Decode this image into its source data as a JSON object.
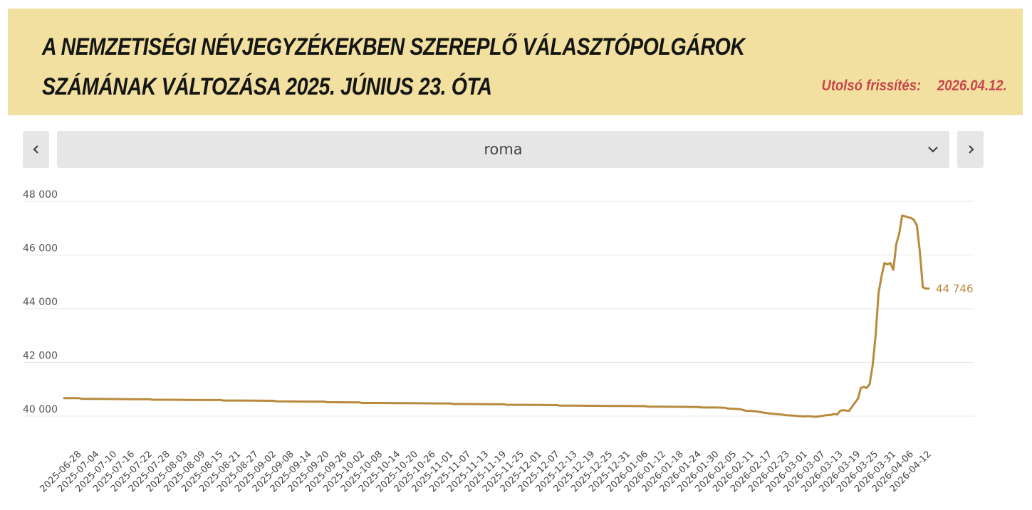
{
  "header": {
    "title_line1": "A NEMZETISÉGI NÉVJEGYZÉKEKBEN SZEREPLŐ VÁLASZTÓPOLGÁROK",
    "title_line2": "SZÁMÁNAK VÁLTOZÁSA 2025. JÚNIUS 23. ÓTA",
    "updated_label": "Utolsó frissítés:",
    "updated_date": "2026.04.12."
  },
  "selector": {
    "value": "roma",
    "prev_icon": "chevron-left-icon",
    "next_icon": "chevron-right-icon",
    "dropdown_icon": "chevron-down-icon"
  },
  "colors": {
    "header_bg": "#f1e09f",
    "title": "#151515",
    "updated": "#c8464f",
    "line": "#b88a3c",
    "control_bg": "#e6e6e6"
  },
  "chart_data": {
    "type": "line",
    "title": "",
    "xlabel": "",
    "ylabel": "",
    "ylim": [
      39000,
      48000
    ],
    "yticks": [
      40000,
      42000,
      44000,
      46000,
      48000
    ],
    "ytick_labels": [
      "40 000",
      "42 000",
      "44 000",
      "46 000",
      "48 000"
    ],
    "grid": true,
    "x_tick_labels": [
      "2025-06-28",
      "2025-07-04",
      "2025-07-10",
      "2025-07-16",
      "2025-07-22",
      "2025-07-28",
      "2025-08-03",
      "2025-08-09",
      "2025-08-15",
      "2025-08-21",
      "2025-08-27",
      "2025-09-02",
      "2025-09-08",
      "2025-09-14",
      "2025-09-20",
      "2025-09-26",
      "2025-10-02",
      "2025-10-08",
      "2025-10-14",
      "2025-10-20",
      "2025-10-26",
      "2025-11-01",
      "2025-11-07",
      "2025-11-13",
      "2025-11-19",
      "2025-11-25",
      "2025-12-01",
      "2025-12-07",
      "2025-12-13",
      "2025-12-19",
      "2025-12-25",
      "2025-12-31",
      "2026-01-06",
      "2026-01-12",
      "2026-01-18",
      "2026-01-24",
      "2026-01-30",
      "2026-02-05",
      "2026-02-11",
      "2026-02-17",
      "2026-02-23",
      "2026-03-01",
      "2026-03-07",
      "2026-03-13",
      "2026-03-19",
      "2026-03-25",
      "2026-03-31",
      "2026-04-06",
      "2026-04-12"
    ],
    "series": [
      {
        "x": [
          "2025-06-23",
          "2025-06-28",
          "2025-06-29",
          "2025-07-04",
          "2025-07-10",
          "2025-07-16",
          "2025-07-22",
          "2025-07-23",
          "2025-07-28",
          "2025-08-03",
          "2025-08-09",
          "2025-08-15",
          "2025-08-16",
          "2025-08-21",
          "2025-08-27",
          "2025-09-02",
          "2025-09-03",
          "2025-09-08",
          "2025-09-14",
          "2025-09-19",
          "2025-09-20",
          "2025-09-26",
          "2025-10-01",
          "2025-10-02",
          "2025-10-08",
          "2025-10-14",
          "2025-10-20",
          "2025-10-26",
          "2025-11-01",
          "2025-11-02",
          "2025-11-07",
          "2025-11-13",
          "2025-11-19",
          "2025-11-20",
          "2025-11-25",
          "2025-12-01",
          "2025-12-07",
          "2025-12-08",
          "2025-12-13",
          "2025-12-19",
          "2025-12-25",
          "2025-12-31",
          "2026-01-06",
          "2026-01-07",
          "2026-01-12",
          "2026-01-18",
          "2026-01-24",
          "2026-01-25",
          "2026-01-30",
          "2026-02-02",
          "2026-02-03",
          "2026-02-05",
          "2026-02-07",
          "2026-02-09",
          "2026-02-11",
          "2026-02-13",
          "2026-02-15",
          "2026-02-17",
          "2026-02-19",
          "2026-02-21",
          "2026-02-23",
          "2026-02-25",
          "2026-02-27",
          "2026-03-01",
          "2026-03-02",
          "2026-03-04",
          "2026-03-05",
          "2026-03-07",
          "2026-03-08",
          "2026-03-10",
          "2026-03-11",
          "2026-03-12",
          "2026-03-13",
          "2026-03-14",
          "2026-03-15",
          "2026-03-16",
          "2026-03-18",
          "2026-03-19",
          "2026-03-20",
          "2026-03-21",
          "2026-03-22",
          "2026-03-23",
          "2026-03-24",
          "2026-03-25",
          "2026-03-26",
          "2026-03-27",
          "2026-03-28",
          "2026-03-29",
          "2026-03-30",
          "2026-03-31",
          "2026-04-01",
          "2026-04-02",
          "2026-04-03",
          "2026-04-04",
          "2026-04-05",
          "2026-04-06",
          "2026-04-07",
          "2026-04-08",
          "2026-04-09",
          "2026-04-10",
          "2026-04-11",
          "2026-04-12"
        ],
        "y": [
          40670,
          40670,
          40640,
          40640,
          40635,
          40630,
          40630,
          40610,
          40610,
          40605,
          40600,
          40600,
          40580,
          40580,
          40575,
          40570,
          40550,
          40545,
          40540,
          40540,
          40520,
          40515,
          40510,
          40490,
          40490,
          40485,
          40480,
          40475,
          40470,
          40450,
          40450,
          40445,
          40440,
          40420,
          40420,
          40415,
          40410,
          40390,
          40390,
          40385,
          40380,
          40375,
          40370,
          40350,
          40350,
          40345,
          40340,
          40320,
          40320,
          40310,
          40280,
          40270,
          40260,
          40200,
          40190,
          40170,
          40130,
          40100,
          40080,
          40060,
          40030,
          40020,
          40000,
          39990,
          40000,
          39980,
          39980,
          40010,
          40030,
          40050,
          40080,
          40060,
          40200,
          40220,
          40210,
          40190,
          40500,
          40650,
          41050,
          41090,
          41050,
          41200,
          41900,
          43000,
          44600,
          45200,
          45700,
          45650,
          45700,
          45450,
          46400,
          46800,
          47470,
          47440,
          47400,
          47380,
          47300,
          47100,
          46100,
          44800,
          44750,
          44746
        ]
      }
    ],
    "last_value_label": "44 746"
  }
}
